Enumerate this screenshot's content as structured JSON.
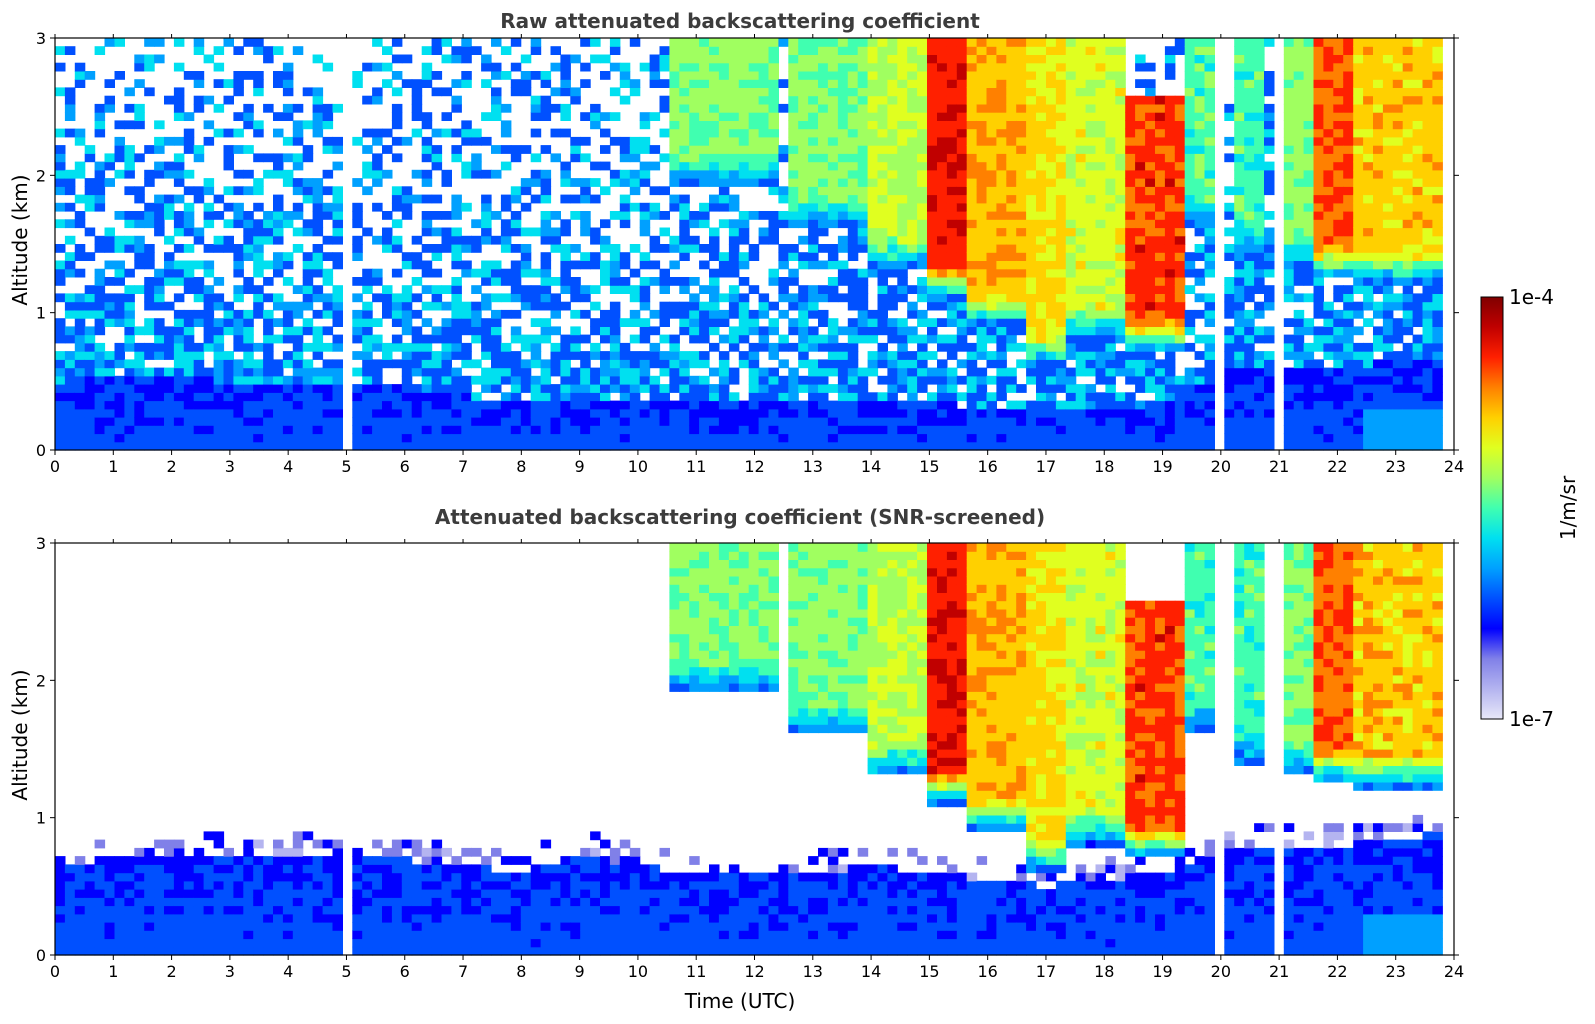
{
  "chart_data": [
    {
      "type": "heatmap",
      "title": "Raw attenuated backscattering coefficient",
      "xlabel": "",
      "ylabel": "Altitude (km)",
      "xlim": [
        0,
        24
      ],
      "ylim": [
        0,
        3
      ],
      "xticks": [
        "0",
        "1",
        "2",
        "3",
        "4",
        "5",
        "6",
        "7",
        "8",
        "9",
        "10",
        "11",
        "12",
        "13",
        "14",
        "15",
        "16",
        "17",
        "18",
        "19",
        "20",
        "21",
        "22",
        "23",
        "24"
      ],
      "yticks": [
        "0",
        "1",
        "2",
        "3"
      ],
      "screened": false,
      "noise_top_km": [
        0.5,
        0.55,
        0.55,
        0.5,
        0.5,
        0.5,
        0.45,
        0.4,
        0.35,
        0.35,
        0.35,
        0.35,
        0.35,
        0.35,
        0.35,
        0.35,
        0.3,
        0.3,
        0.3,
        0.3,
        0.6,
        0.6,
        0.6,
        0.65,
        0.7
      ],
      "gaps_utc": [
        5.05,
        20.05,
        21.05
      ]
    },
    {
      "type": "heatmap",
      "title": "Attenuated backscattering coefficient (SNR-screened)",
      "xlabel": "Time (UTC)",
      "ylabel": "Altitude (km)",
      "xlim": [
        0,
        24
      ],
      "ylim": [
        0,
        3
      ],
      "xticks": [
        "0",
        "1",
        "2",
        "3",
        "4",
        "5",
        "6",
        "7",
        "8",
        "9",
        "10",
        "11",
        "12",
        "13",
        "14",
        "15",
        "16",
        "17",
        "18",
        "19",
        "20",
        "21",
        "22",
        "23",
        "24"
      ],
      "yticks": [
        "0",
        "1",
        "2",
        "3"
      ],
      "screened": true,
      "boundary_layer_top_km": [
        0.65,
        0.7,
        0.7,
        0.75,
        0.75,
        0.7,
        0.7,
        0.65,
        0.6,
        0.75,
        0.65,
        0.6,
        0.6,
        0.6,
        0.65,
        0.6,
        0.55,
        0.5,
        0.55,
        0.6,
        0.75,
        0.8,
        0.8,
        0.85,
        0.9
      ],
      "gaps_utc": [
        5.05,
        20.05,
        21.05
      ]
    }
  ],
  "cloud_layers": [
    {
      "t_start": 10.6,
      "t_end": 12.4,
      "base_km": 1.9,
      "top_km": 3.0,
      "peak": 0.55
    },
    {
      "t_start": 12.5,
      "t_end": 14.0,
      "base_km": 1.6,
      "top_km": 3.0,
      "peak": 0.55
    },
    {
      "t_start": 14.0,
      "t_end": 14.9,
      "base_km": 1.3,
      "top_km": 3.0,
      "peak": 0.6
    },
    {
      "t_start": 14.9,
      "t_end": 15.6,
      "base_km": 1.1,
      "top_km": 3.0,
      "peak": 0.85
    },
    {
      "t_start": 15.6,
      "t_end": 16.6,
      "base_km": 0.9,
      "top_km": 3.0,
      "peak": 0.72
    },
    {
      "t_start": 16.6,
      "t_end": 17.3,
      "base_km": 0.6,
      "top_km": 3.0,
      "peak": 0.68
    },
    {
      "t_start": 17.3,
      "t_end": 18.3,
      "base_km": 0.8,
      "top_km": 3.0,
      "peak": 0.62
    },
    {
      "t_start": 18.3,
      "t_end": 19.4,
      "base_km": 0.7,
      "top_km": 2.6,
      "peak": 0.82
    },
    {
      "t_start": 19.4,
      "t_end": 20.0,
      "base_km": 1.6,
      "top_km": 3.0,
      "peak": 0.5
    },
    {
      "t_start": 20.2,
      "t_end": 20.8,
      "base_km": 1.4,
      "top_km": 3.0,
      "peak": 0.5
    },
    {
      "t_start": 21.0,
      "t_end": 21.6,
      "base_km": 1.3,
      "top_km": 3.0,
      "peak": 0.55
    },
    {
      "t_start": 21.6,
      "t_end": 22.3,
      "base_km": 1.25,
      "top_km": 3.0,
      "peak": 0.8
    },
    {
      "t_start": 22.3,
      "t_end": 23.8,
      "base_km": 1.2,
      "top_km": 3.0,
      "peak": 0.7
    }
  ],
  "colorbar": {
    "label": "1/m/sr",
    "max_label": "1e-4",
    "min_label": "1e-7",
    "colors": [
      "#e8e8f8",
      "#b4b4f0",
      "#8080e8",
      "#0000ff",
      "#0050ff",
      "#00a0ff",
      "#00e0f0",
      "#40ffb0",
      "#a0ff60",
      "#e0ff20",
      "#ffd000",
      "#ff8000",
      "#ff2000",
      "#c00000",
      "#800000"
    ]
  }
}
